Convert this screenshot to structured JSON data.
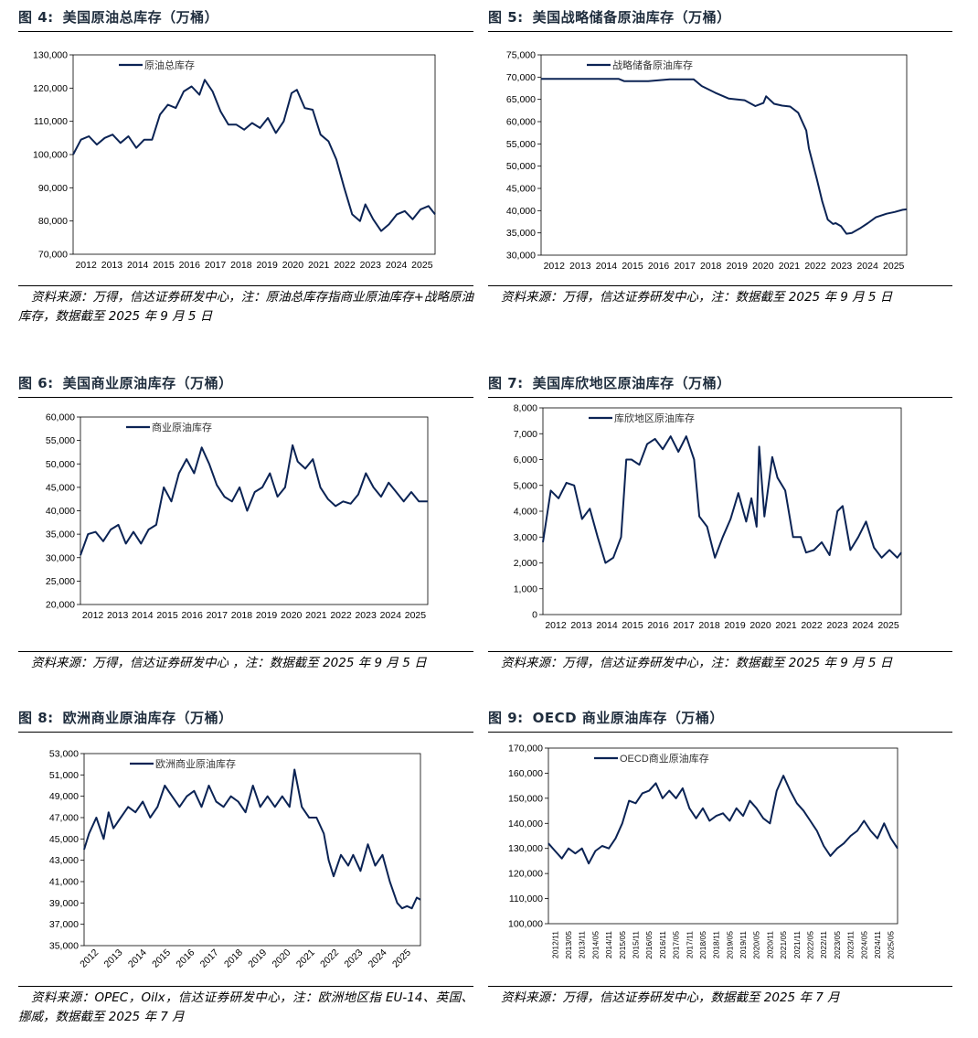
{
  "line_color": "#0b2354",
  "figures": [
    {
      "fig_no": "图 4:",
      "title": "美国原油总库存（万桶）",
      "source": "资料来源：万得，信达证券研发中心，注：原油总库存指商业原油库存+战略原油库存，数据截至 2025 年 9 月 5 日"
    },
    {
      "fig_no": "图 5:",
      "title": "美国战略储备原油库存（万桶）",
      "source": "资料来源：万得，信达证券研发中心，注：数据截至 2025 年 9 月 5 日"
    },
    {
      "fig_no": "图 6:",
      "title": "美国商业原油库存（万桶）",
      "source": "资料来源：万得，信达证券研发中心 ，注：数据截至 2025 年 9 月 5 日"
    },
    {
      "fig_no": "图 7:",
      "title": "美国库欣地区原油库存（万桶）",
      "source": "资料来源：万得，信达证券研发中心，注：数据截至 2025 年 9 月 5 日"
    },
    {
      "fig_no": "图 8:",
      "title": "欧洲商业原油库存（万桶）",
      "source": "资料来源：OPEC，Oilx，信达证券研发中心，注：欧洲地区指 EU-14、英国、挪威，数据截至 2025 年 7 月"
    },
    {
      "fig_no": "图 9:",
      "title": "OECD 商业原油库存（万桶）",
      "source": "资料来源：万得，信达证券研发中心，数据截至 2025 年 7 月"
    }
  ],
  "chart_data": [
    {
      "type": "line",
      "series_name": "原油总库存",
      "x_ticks": [
        "2012",
        "2013",
        "2014",
        "2015",
        "2016",
        "2017",
        "2018",
        "2019",
        "2020",
        "2021",
        "2022",
        "2023",
        "2024",
        "2025"
      ],
      "x_range": [
        2012.0,
        2025.75
      ],
      "y_ticks": [
        70000,
        80000,
        90000,
        100000,
        110000,
        120000,
        130000
      ],
      "y_tick_labels": [
        "70,000",
        "80,000",
        "90,000",
        "100,000",
        "110,000",
        "120,000",
        "130,000"
      ],
      "ylim": [
        70000,
        130000
      ],
      "x": [
        2012.0,
        2012.3,
        2012.6,
        2012.9,
        2013.2,
        2013.5,
        2013.8,
        2014.1,
        2014.4,
        2014.7,
        2015.0,
        2015.3,
        2015.6,
        2015.9,
        2016.2,
        2016.5,
        2016.8,
        2017.0,
        2017.3,
        2017.6,
        2017.9,
        2018.2,
        2018.5,
        2018.8,
        2019.1,
        2019.4,
        2019.7,
        2020.0,
        2020.3,
        2020.5,
        2020.8,
        2021.1,
        2021.4,
        2021.7,
        2022.0,
        2022.3,
        2022.6,
        2022.9,
        2023.1,
        2023.4,
        2023.7,
        2024.0,
        2024.3,
        2024.6,
        2024.9,
        2025.2,
        2025.5,
        2025.75
      ],
      "values": [
        100000,
        104500,
        105500,
        103000,
        105000,
        106000,
        103500,
        105500,
        102000,
        104500,
        104500,
        112000,
        115000,
        114000,
        119000,
        120500,
        118000,
        122500,
        119000,
        113000,
        109000,
        109000,
        107500,
        109500,
        108000,
        111000,
        106500,
        110000,
        118500,
        119500,
        114000,
        113500,
        106000,
        104000,
        98500,
        90000,
        82000,
        80000,
        85000,
        80500,
        77000,
        79000,
        82000,
        83000,
        80500,
        83500,
        84500,
        82000
      ]
    },
    {
      "type": "line",
      "series_name": "战略储备原油库存",
      "x_ticks": [
        "2012",
        "2013",
        "2014",
        "2015",
        "2016",
        "2017",
        "2018",
        "2019",
        "2020",
        "2021",
        "2022",
        "2023",
        "2024",
        "2025"
      ],
      "x_range": [
        2012.0,
        2025.65
      ],
      "y_ticks": [
        30000,
        35000,
        40000,
        45000,
        50000,
        55000,
        60000,
        65000,
        70000,
        75000
      ],
      "y_tick_labels": [
        "30,000",
        "35,000",
        "40,000",
        "45,000",
        "50,000",
        "55,000",
        "60,000",
        "65,000",
        "70,000",
        "75,000"
      ],
      "ylim": [
        30000,
        75000
      ],
      "x": [
        2012.0,
        2013.0,
        2014.0,
        2014.9,
        2015.1,
        2016.0,
        2016.8,
        2017.0,
        2017.3,
        2017.7,
        2018.0,
        2018.5,
        2019.0,
        2019.6,
        2020.0,
        2020.3,
        2020.4,
        2020.7,
        2021.0,
        2021.3,
        2021.6,
        2021.9,
        2022.0,
        2022.3,
        2022.5,
        2022.7,
        2022.9,
        2023.0,
        2023.2,
        2023.4,
        2023.6,
        2023.9,
        2024.2,
        2024.5,
        2024.9,
        2025.2,
        2025.5,
        2025.65
      ],
      "values": [
        69600,
        69600,
        69600,
        69600,
        69100,
        69100,
        69500,
        69500,
        69500,
        69500,
        68000,
        66500,
        65200,
        64800,
        63500,
        64200,
        65700,
        64000,
        63600,
        63400,
        62000,
        58000,
        54000,
        47000,
        42000,
        38000,
        37000,
        37200,
        36500,
        34800,
        35000,
        36000,
        37200,
        38500,
        39300,
        39700,
        40200,
        40300
      ]
    },
    {
      "type": "line",
      "series_name": "商业原油库存",
      "x_ticks": [
        "2012",
        "2013",
        "2014",
        "2015",
        "2016",
        "2017",
        "2018",
        "2019",
        "2020",
        "2021",
        "2022",
        "2023",
        "2024",
        "2025"
      ],
      "x_range": [
        2012.0,
        2025.75
      ],
      "y_ticks": [
        20000,
        25000,
        30000,
        35000,
        40000,
        45000,
        50000,
        55000,
        60000
      ],
      "y_tick_labels": [
        "20,000",
        "25,000",
        "30,000",
        "35,000",
        "40,000",
        "45,000",
        "50,000",
        "55,000",
        "60,000"
      ],
      "ylim": [
        20000,
        60000
      ],
      "x": [
        2012.0,
        2012.3,
        2012.6,
        2012.9,
        2013.2,
        2013.5,
        2013.8,
        2014.1,
        2014.4,
        2014.7,
        2015.0,
        2015.3,
        2015.6,
        2015.9,
        2016.2,
        2016.5,
        2016.8,
        2017.1,
        2017.4,
        2017.7,
        2018.0,
        2018.3,
        2018.6,
        2018.9,
        2019.2,
        2019.5,
        2019.8,
        2020.1,
        2020.4,
        2020.6,
        2020.9,
        2021.2,
        2021.5,
        2021.8,
        2022.1,
        2022.4,
        2022.7,
        2023.0,
        2023.3,
        2023.6,
        2023.9,
        2024.2,
        2024.5,
        2024.8,
        2025.1,
        2025.4,
        2025.75
      ],
      "values": [
        30500,
        35000,
        35500,
        33500,
        36000,
        37000,
        33000,
        35500,
        33000,
        36000,
        37000,
        45000,
        42000,
        48000,
        51000,
        48000,
        53500,
        50000,
        45500,
        43000,
        42000,
        45000,
        40000,
        44000,
        45000,
        48000,
        43000,
        45000,
        54000,
        50500,
        49000,
        51000,
        45000,
        42500,
        41000,
        42000,
        41500,
        43500,
        48000,
        45000,
        43000,
        46000,
        44000,
        42000,
        44000,
        42000,
        42000
      ]
    },
    {
      "type": "line",
      "series_name": "库欣地区原油库存",
      "x_ticks": [
        "2012",
        "2013",
        "2014",
        "2015",
        "2016",
        "2017",
        "2018",
        "2019",
        "2020",
        "2021",
        "2022",
        "2023",
        "2024",
        "2025"
      ],
      "x_range": [
        2012.0,
        2025.75
      ],
      "y_ticks": [
        0,
        1000,
        2000,
        3000,
        4000,
        5000,
        6000,
        7000,
        8000
      ],
      "y_tick_labels": [
        "0",
        "1,000",
        "2,000",
        "3,000",
        "4,000",
        "5,000",
        "6,000",
        "7,000",
        "8,000"
      ],
      "ylim": [
        0,
        8000
      ],
      "x": [
        2012.0,
        2012.3,
        2012.6,
        2012.9,
        2013.2,
        2013.5,
        2013.8,
        2014.1,
        2014.4,
        2014.7,
        2015.0,
        2015.2,
        2015.4,
        2015.7,
        2016.0,
        2016.3,
        2016.6,
        2016.9,
        2017.2,
        2017.5,
        2017.8,
        2018.0,
        2018.3,
        2018.6,
        2018.9,
        2019.2,
        2019.5,
        2019.8,
        2020.0,
        2020.2,
        2020.3,
        2020.5,
        2020.8,
        2021.0,
        2021.3,
        2021.6,
        2021.9,
        2022.1,
        2022.4,
        2022.7,
        2023.0,
        2023.3,
        2023.5,
        2023.8,
        2024.1,
        2024.4,
        2024.7,
        2025.0,
        2025.3,
        2025.6,
        2025.75
      ],
      "values": [
        2800,
        4800,
        4500,
        5100,
        5000,
        3700,
        4100,
        3000,
        2000,
        2200,
        3000,
        6000,
        6000,
        5800,
        6600,
        6800,
        6400,
        6900,
        6300,
        6900,
        6000,
        3800,
        3400,
        2200,
        3000,
        3700,
        4700,
        3600,
        4500,
        3400,
        6500,
        3800,
        6100,
        5300,
        4800,
        3000,
        3000,
        2400,
        2500,
        2800,
        2300,
        4000,
        4200,
        2500,
        3000,
        3600,
        2600,
        2200,
        2500,
        2200,
        2400
      ]
    },
    {
      "type": "line",
      "series_name": "欧洲商业原油库存",
      "x_ticks": [
        "2012",
        "2013",
        "2014",
        "2015",
        "2016",
        "2017",
        "2018",
        "2019",
        "2020",
        "2021",
        "2022",
        "2023",
        "2024",
        "2025"
      ],
      "x_range": [
        2012.0,
        2025.75
      ],
      "y_ticks": [
        35000,
        37000,
        39000,
        41000,
        43000,
        45000,
        47000,
        49000,
        51000,
        53000
      ],
      "y_tick_labels": [
        "35,000",
        "37,000",
        "39,000",
        "41,000",
        "43,000",
        "45,000",
        "47,000",
        "49,000",
        "51,000",
        "53,000"
      ],
      "ylim": [
        35000,
        53000
      ],
      "x": [
        2012.0,
        2012.2,
        2012.5,
        2012.8,
        2013.0,
        2013.2,
        2013.5,
        2013.8,
        2014.1,
        2014.4,
        2014.7,
        2015.0,
        2015.3,
        2015.6,
        2015.9,
        2016.2,
        2016.5,
        2016.8,
        2017.1,
        2017.4,
        2017.7,
        2018.0,
        2018.3,
        2018.6,
        2018.9,
        2019.2,
        2019.5,
        2019.8,
        2020.1,
        2020.4,
        2020.6,
        2020.9,
        2021.2,
        2021.5,
        2021.8,
        2022.0,
        2022.2,
        2022.5,
        2022.8,
        2023.0,
        2023.3,
        2023.6,
        2023.9,
        2024.2,
        2024.5,
        2024.8,
        2025.0,
        2025.2,
        2025.4,
        2025.6,
        2025.75
      ],
      "values": [
        44000,
        45500,
        47000,
        45000,
        47500,
        46000,
        47000,
        48000,
        47500,
        48500,
        47000,
        48000,
        50000,
        49000,
        48000,
        49000,
        49500,
        48000,
        50000,
        48500,
        48000,
        49000,
        48500,
        47500,
        50000,
        48000,
        49000,
        48000,
        49000,
        48000,
        51500,
        48000,
        47000,
        47000,
        45500,
        43000,
        41500,
        43500,
        42500,
        43500,
        42000,
        44500,
        42500,
        43500,
        41000,
        39000,
        38500,
        38700,
        38500,
        39500,
        39300
      ]
    },
    {
      "type": "line",
      "series_name": "OECD商业原油库存",
      "x_ticks": [
        "2012/11",
        "2013/05",
        "2013/11",
        "2014/05",
        "2014/11",
        "2015/05",
        "2015/11",
        "2016/05",
        "2016/11",
        "2017/05",
        "2017/11",
        "2018/05",
        "2018/11",
        "2019/05",
        "2019/11",
        "2020/05",
        "2020/11",
        "2021/05",
        "2021/11",
        "2022/05",
        "2022/11",
        "2023/05",
        "2023/11",
        "2024/05",
        "2024/11",
        "2025/05"
      ],
      "x_range": [
        0,
        26
      ],
      "y_ticks": [
        100000,
        110000,
        120000,
        130000,
        140000,
        150000,
        160000,
        170000
      ],
      "y_tick_labels": [
        "100,000",
        "110,000",
        "120,000",
        "130,000",
        "140,000",
        "150,000",
        "160,000",
        "170,000"
      ],
      "ylim": [
        100000,
        170000
      ],
      "x": [
        0,
        0.5,
        1,
        1.5,
        2,
        2.5,
        3,
        3.5,
        4,
        4.5,
        5,
        5.5,
        6,
        6.5,
        7,
        7.5,
        8,
        8.5,
        9,
        9.5,
        10,
        10.5,
        11,
        11.5,
        12,
        12.5,
        13,
        13.5,
        14,
        14.5,
        15,
        15.5,
        16,
        16.5,
        17,
        17.5,
        18,
        18.5,
        19,
        19.5,
        20,
        20.5,
        21,
        21.5,
        22,
        22.5,
        23,
        23.5,
        24,
        24.5,
        25,
        25.5,
        26
      ],
      "values": [
        132000,
        129000,
        126000,
        130000,
        128000,
        130000,
        124000,
        129000,
        131000,
        130000,
        134000,
        140000,
        149000,
        148000,
        152000,
        153000,
        156000,
        150000,
        153000,
        150000,
        154000,
        146000,
        142000,
        146000,
        141000,
        143000,
        144000,
        141000,
        146000,
        143000,
        149000,
        146000,
        142000,
        140000,
        153000,
        159000,
        153000,
        148000,
        145000,
        141000,
        137000,
        131000,
        127000,
        130000,
        132000,
        135000,
        137000,
        141000,
        137000,
        134000,
        140000,
        134000,
        130000
      ]
    }
  ]
}
